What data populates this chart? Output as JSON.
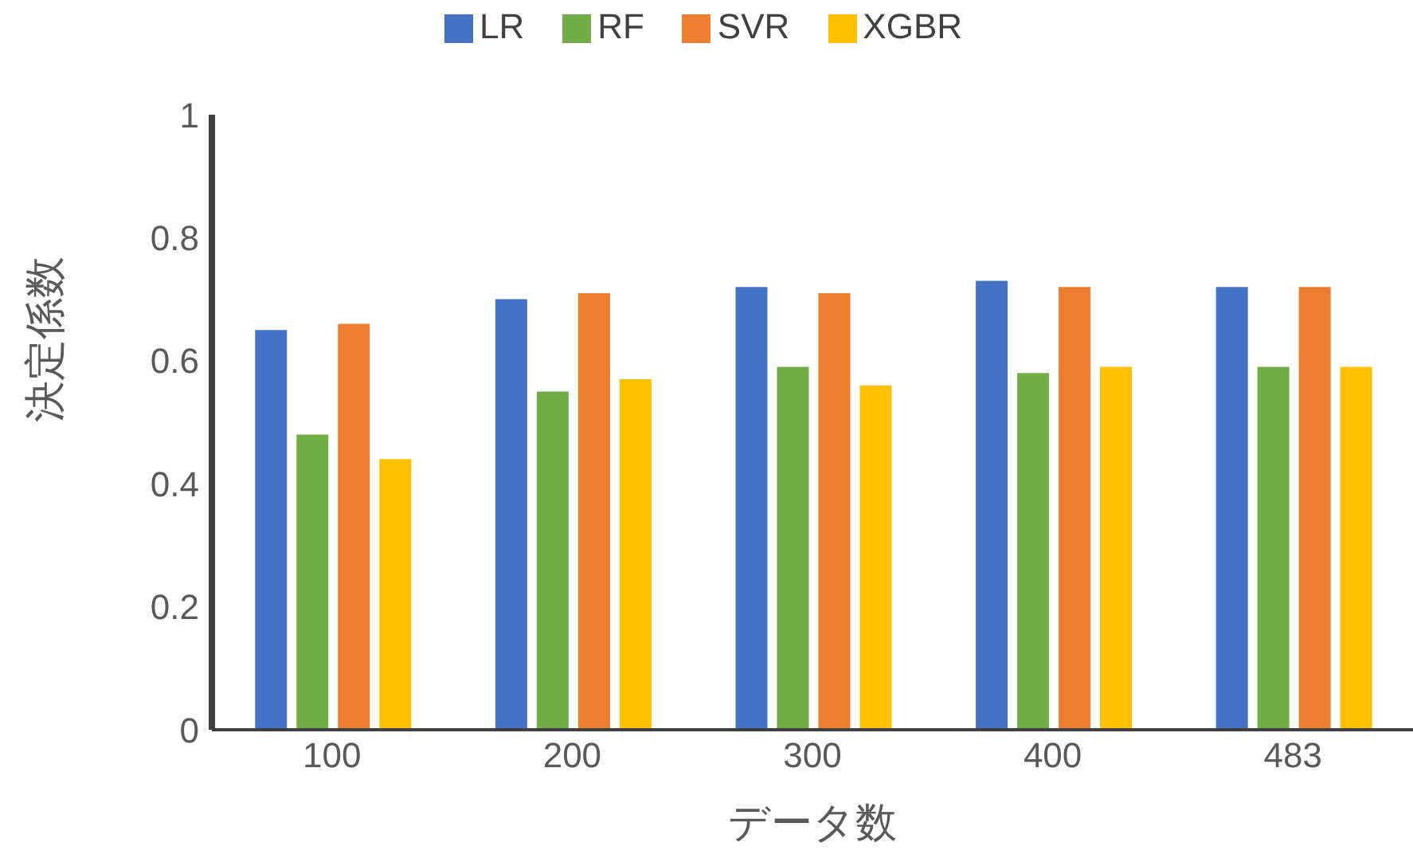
{
  "chart_data": {
    "type": "bar",
    "xlabel": "データ数",
    "ylabel": "決定係数",
    "categories": [
      "100",
      "200",
      "300",
      "400",
      "483"
    ],
    "series": [
      {
        "name": "LR",
        "color": "#4472c4",
        "values": [
          0.65,
          0.7,
          0.72,
          0.73,
          0.72
        ]
      },
      {
        "name": "RF",
        "color": "#70ad47",
        "values": [
          0.48,
          0.55,
          0.59,
          0.58,
          0.59
        ]
      },
      {
        "name": "SVR",
        "color": "#ed7d31",
        "values": [
          0.66,
          0.71,
          0.71,
          0.72,
          0.72
        ]
      },
      {
        "name": "XGBR",
        "color": "#ffc000",
        "values": [
          0.44,
          0.57,
          0.56,
          0.59,
          0.59
        ]
      }
    ],
    "ylim": [
      0,
      1
    ],
    "yticks": [
      0,
      0.2,
      0.4,
      0.6,
      0.8,
      1
    ],
    "grid": false,
    "legend": "top"
  }
}
